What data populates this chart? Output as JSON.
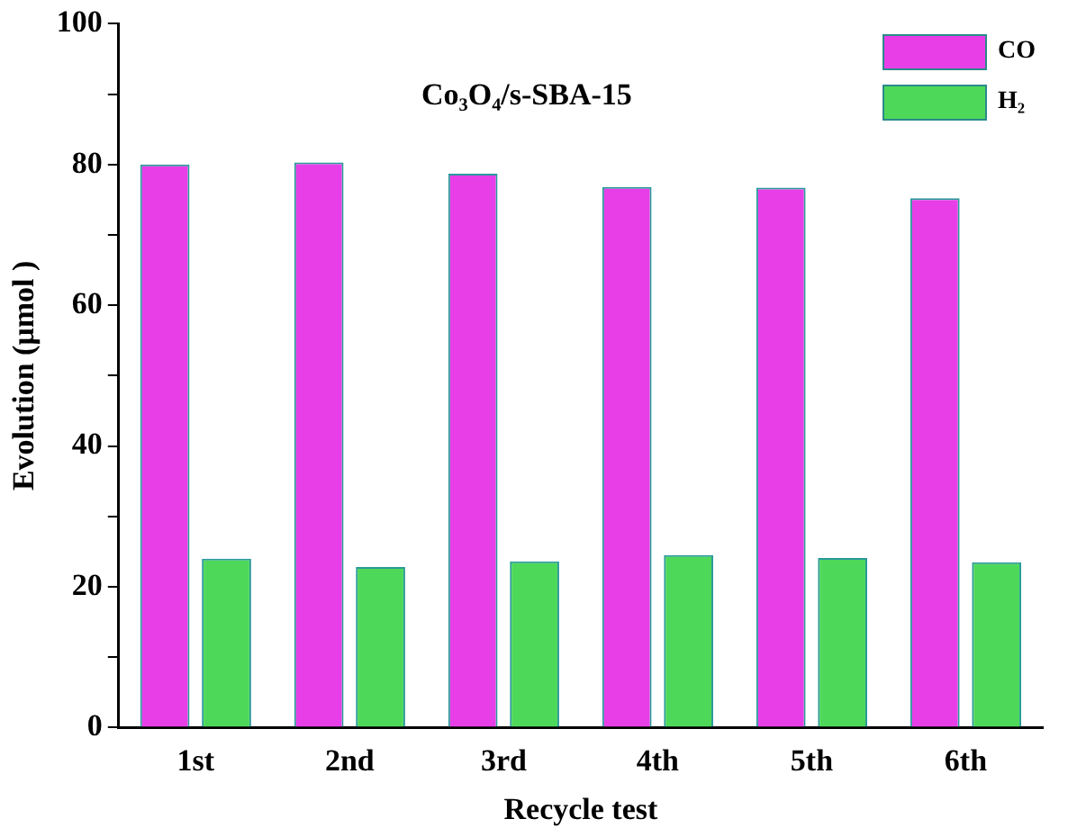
{
  "chart_data": {
    "type": "bar",
    "categories": [
      "1st",
      "2nd",
      "3rd",
      "4th",
      "5th",
      "6th"
    ],
    "series": [
      {
        "name": "CO",
        "color": "#e83ee8",
        "values": [
          80.0,
          80.3,
          78.7,
          76.8,
          76.7,
          75.2
        ]
      },
      {
        "name": "H₂",
        "color": "#4ed85a",
        "values": [
          24.0,
          22.8,
          23.6,
          24.5,
          24.1,
          23.5
        ]
      }
    ],
    "xlabel": "Recycle test",
    "ylabel": "Evolution (μmol )",
    "annotations": [
      "Co₃O₄/s-SBA-15"
    ],
    "ylim": [
      0,
      100
    ],
    "yticks": [
      0,
      {
        "value": 10,
        "label": null
      },
      20,
      {
        "value": 30,
        "label": null
      },
      40,
      {
        "value": 50,
        "label": null
      },
      60,
      {
        "value": 70,
        "label": null
      },
      80,
      {
        "value": 90,
        "label": null
      },
      100
    ],
    "legend": "top right",
    "grid": false
  }
}
